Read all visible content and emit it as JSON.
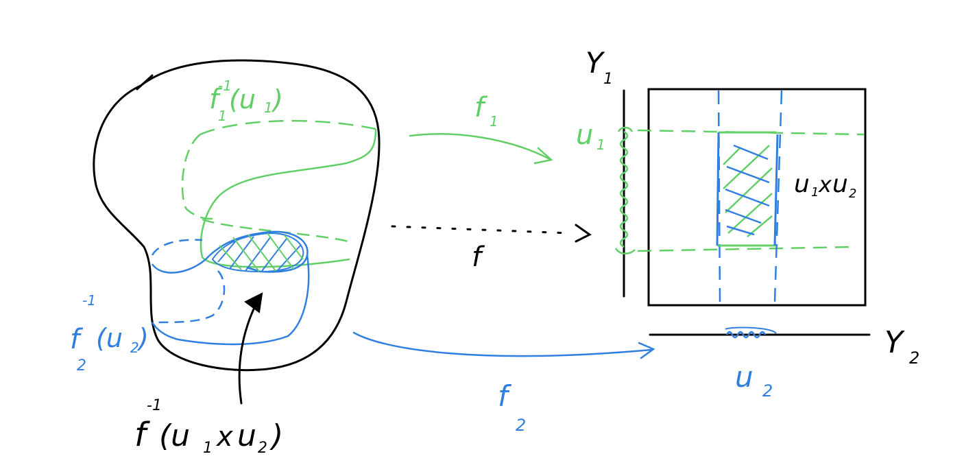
{
  "colors": {
    "ink": "#000000",
    "green": "#5fcf66",
    "blue": "#2f7fe0"
  },
  "labels": {
    "f1_preimage": {
      "main": "f",
      "sub": "1",
      "sup": "-1",
      "arg": "(u",
      "argsub": "1",
      "close": ")"
    },
    "f2_preimage": {
      "main": "f",
      "sub": "2",
      "sup": "-1",
      "arg": "(u",
      "argsub": "2",
      "close": ")"
    },
    "product_preimage": {
      "main": "f",
      "sup": "-1",
      "arg": "(u",
      "s1": "1",
      "x": "x",
      "u2": "u",
      "s2": "2",
      "close": ")"
    },
    "f1_arrow": {
      "main": "f",
      "sub": "1"
    },
    "f2_arrow": {
      "main": "f",
      "sub": "2"
    },
    "f_arrow": "f",
    "Y1": {
      "main": "Y",
      "sub": "1"
    },
    "Y2": {
      "main": "Y",
      "sub": "2"
    },
    "u1": {
      "main": "u",
      "sub": "1"
    },
    "u2": {
      "main": "u",
      "sub": "2"
    },
    "product": {
      "u": "u",
      "s1": "1",
      "x": "x",
      "u2": "u",
      "s2": "2"
    }
  }
}
